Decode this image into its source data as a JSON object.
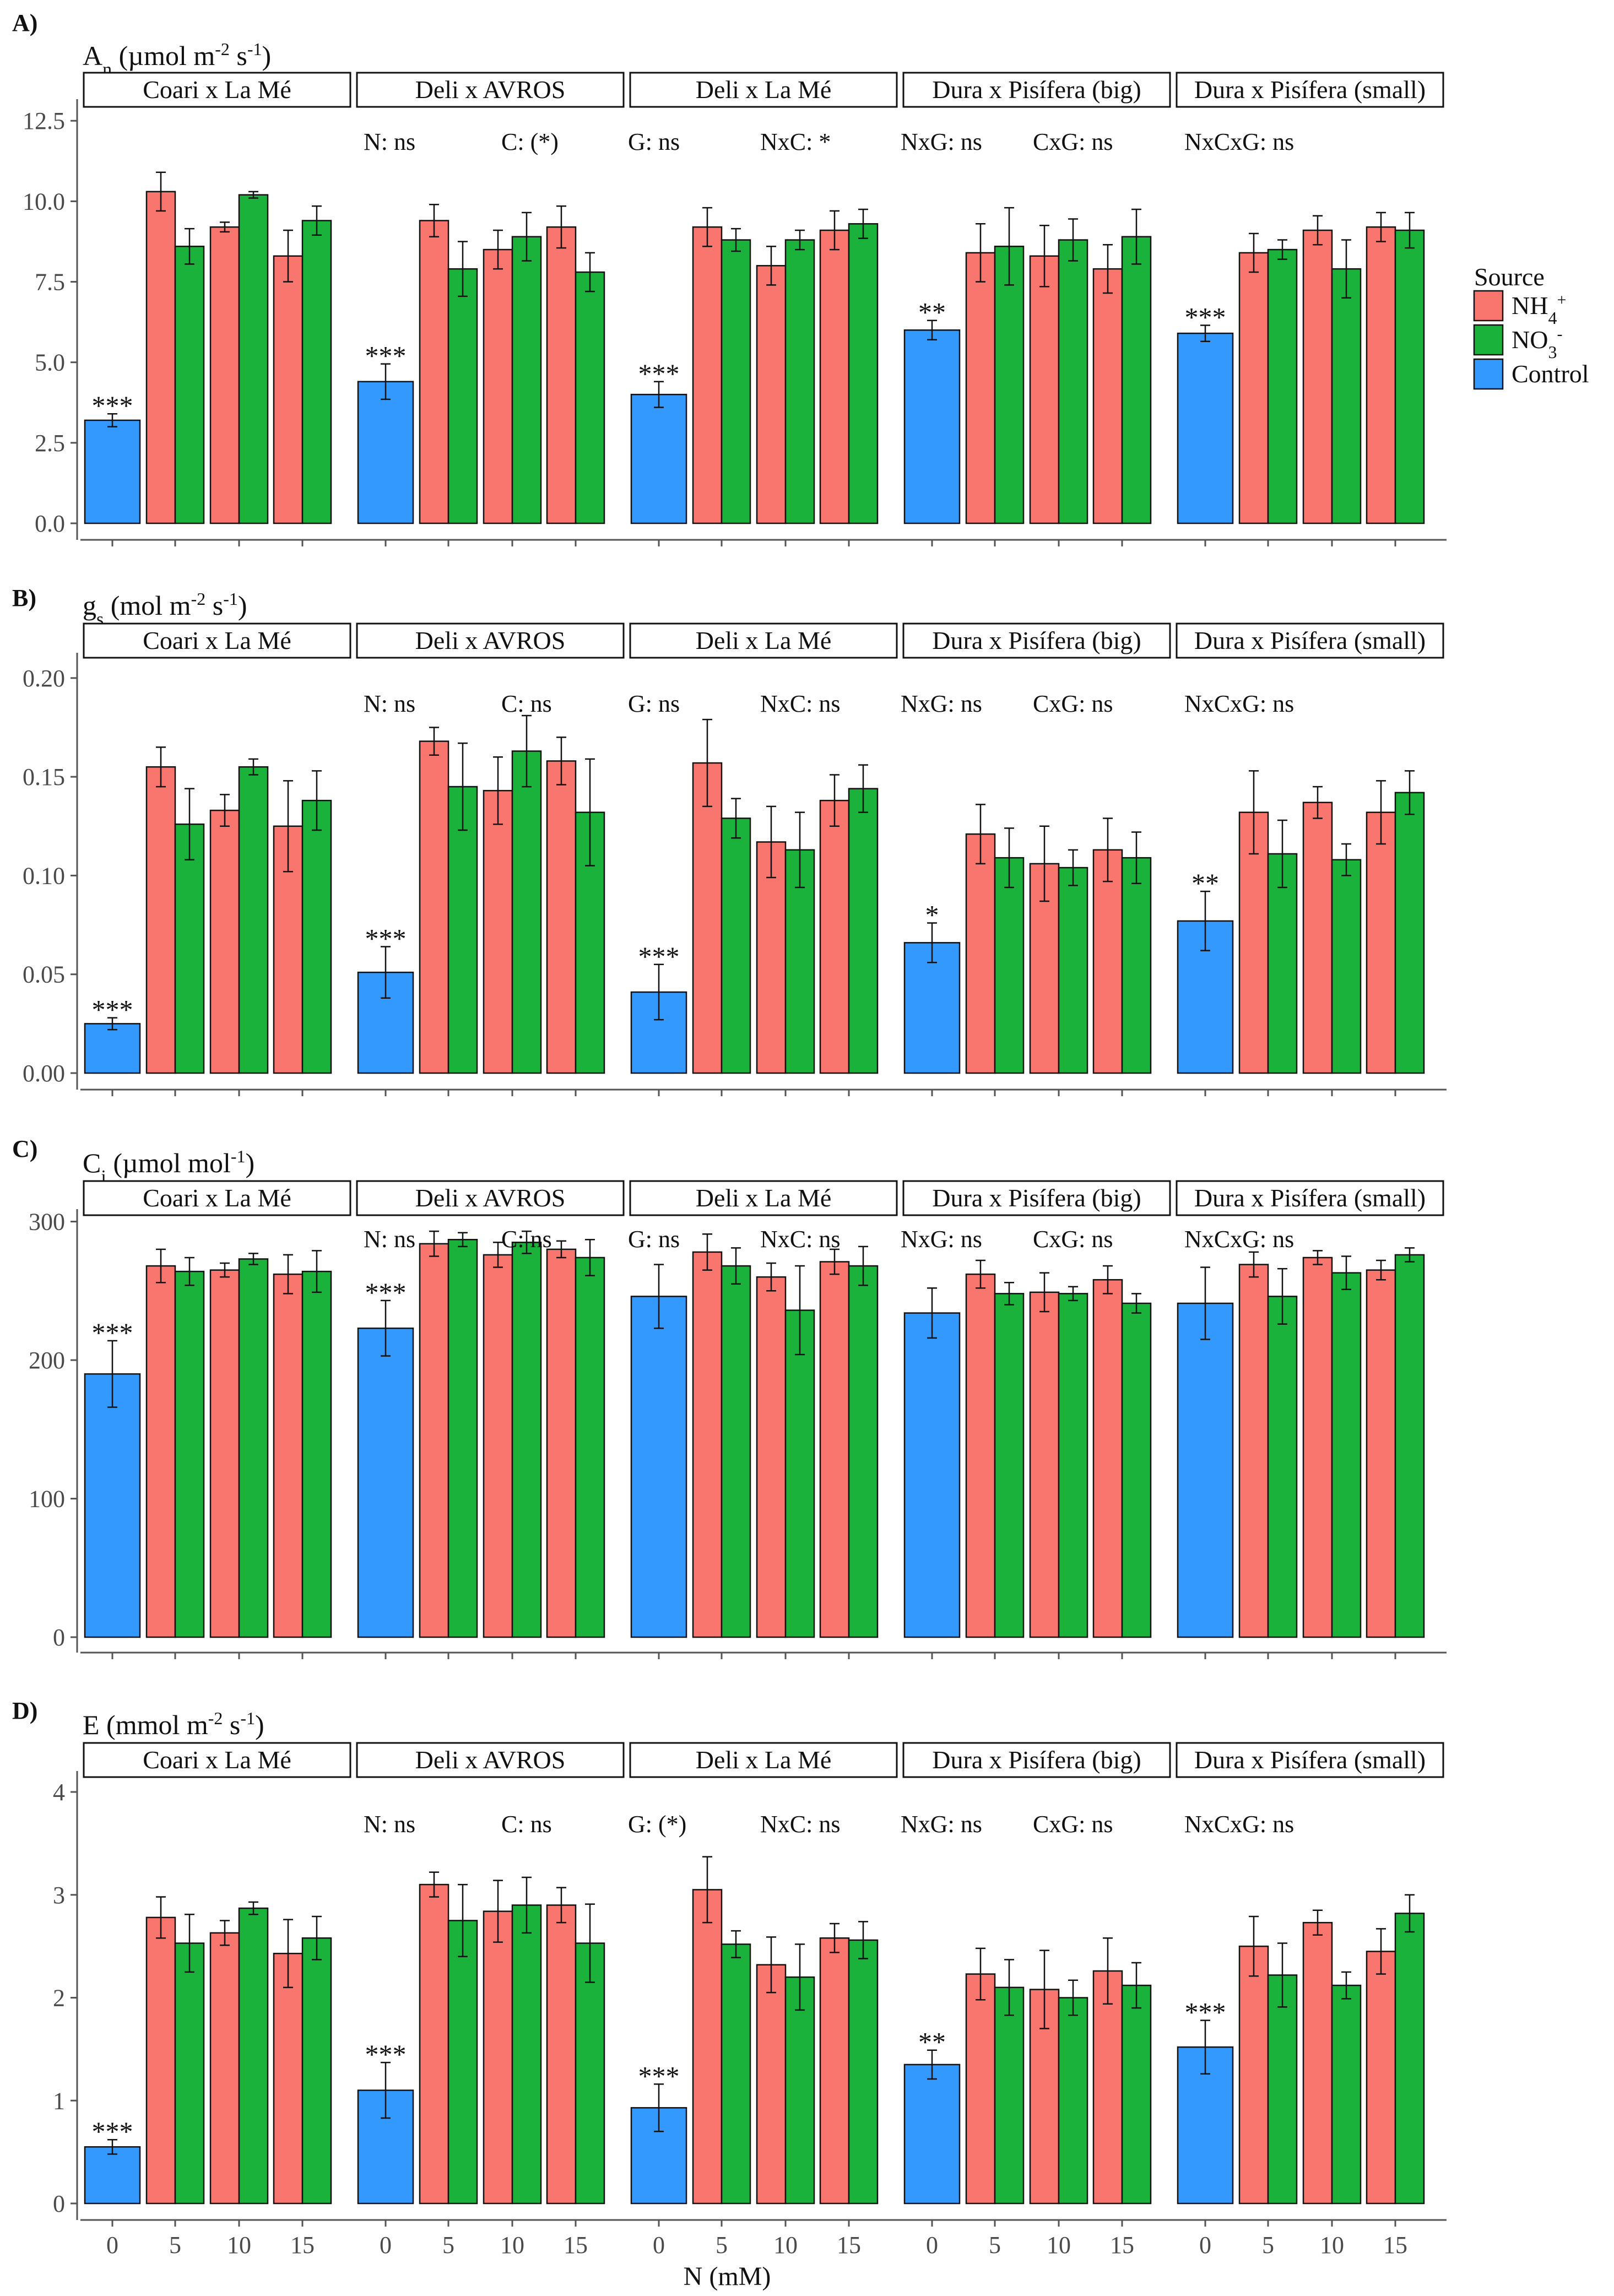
{
  "chart_data": [
    {
      "panel": "A)",
      "type": "bar",
      "ylabel": "An (µmol m-2 s-1)",
      "ylabel_parts": {
        "main": "A",
        "sub": "n",
        "unit_a": " (µmol m",
        "sup_a": "-2",
        "unit_b": " s",
        "sup_b": "-1",
        "unit_c": ")"
      },
      "ylim": [
        0,
        13.0
      ],
      "yticks": [
        "0.0",
        "2.5",
        "5.0",
        "7.5",
        "10.0",
        "12.5"
      ],
      "ytick_values": [
        0,
        2.5,
        5,
        7.5,
        10,
        12.5
      ],
      "stats": [
        "N: ns",
        "C: (*)",
        "G: ns",
        "NxC: *",
        "NxG: ns",
        "CxG: ns",
        "NxCxG: ns"
      ],
      "facets": [
        {
          "name": "Coari x La Mé",
          "control": {
            "value": 3.2,
            "se": 0.2,
            "sig": "***"
          },
          "nh4": [
            10.3,
            9.2,
            8.3
          ],
          "nh4_se": [
            0.6,
            0.15,
            0.8
          ],
          "no3": [
            8.6,
            10.2,
            9.4
          ],
          "no3_se": [
            0.55,
            0.1,
            0.45
          ]
        },
        {
          "name": "Deli x AVROS",
          "control": {
            "value": 4.4,
            "se": 0.55,
            "sig": "***"
          },
          "nh4": [
            9.4,
            8.5,
            9.2
          ],
          "nh4_se": [
            0.5,
            0.6,
            0.65
          ],
          "no3": [
            7.9,
            8.9,
            7.8
          ],
          "no3_se": [
            0.85,
            0.75,
            0.6
          ]
        },
        {
          "name": "Deli x La Mé",
          "control": {
            "value": 4.0,
            "se": 0.4,
            "sig": "***"
          },
          "nh4": [
            9.2,
            8.0,
            9.1
          ],
          "nh4_se": [
            0.6,
            0.6,
            0.6
          ],
          "no3": [
            8.8,
            8.8,
            9.3
          ],
          "no3_se": [
            0.35,
            0.3,
            0.45
          ]
        },
        {
          "name": "Dura x Pisífera (big)",
          "control": {
            "value": 6.0,
            "se": 0.3,
            "sig": "**"
          },
          "nh4": [
            8.4,
            8.3,
            7.9
          ],
          "nh4_se": [
            0.9,
            0.95,
            0.75
          ],
          "no3": [
            8.6,
            8.8,
            8.9
          ],
          "no3_se": [
            1.2,
            0.65,
            0.85
          ]
        },
        {
          "name": "Dura x Pisífera (small)",
          "control": {
            "value": 5.9,
            "se": 0.25,
            "sig": "***"
          },
          "nh4": [
            8.4,
            9.1,
            9.2
          ],
          "nh4_se": [
            0.6,
            0.45,
            0.45
          ],
          "no3": [
            8.5,
            7.9,
            9.1
          ],
          "no3_se": [
            0.3,
            0.9,
            0.55
          ]
        }
      ]
    },
    {
      "panel": "B)",
      "type": "bar",
      "ylabel": "gs (mol m-2 s-1)",
      "ylabel_parts": {
        "main": "g",
        "sub": "s",
        "unit_a": " (mol m",
        "sup_a": "-2",
        "unit_b": " s",
        "sup_b": "-1",
        "unit_c": ")"
      },
      "ylim": [
        0,
        0.21
      ],
      "yticks": [
        "0.00",
        "0.05",
        "0.10",
        "0.15",
        "0.20"
      ],
      "ytick_values": [
        0,
        0.05,
        0.1,
        0.15,
        0.2
      ],
      "stats": [
        "N: ns",
        "C: ns",
        "G: ns",
        "NxC: ns",
        "NxG: ns",
        "CxG: ns",
        "NxCxG: ns"
      ],
      "facets": [
        {
          "name": "Coari x La Mé",
          "control": {
            "value": 0.025,
            "se": 0.003,
            "sig": "***"
          },
          "nh4": [
            0.155,
            0.133,
            0.125
          ],
          "nh4_se": [
            0.01,
            0.008,
            0.023
          ],
          "no3": [
            0.126,
            0.155,
            0.138
          ],
          "no3_se": [
            0.018,
            0.004,
            0.015
          ]
        },
        {
          "name": "Deli x AVROS",
          "control": {
            "value": 0.051,
            "se": 0.013,
            "sig": "***"
          },
          "nh4": [
            0.168,
            0.143,
            0.158
          ],
          "nh4_se": [
            0.007,
            0.017,
            0.012
          ],
          "no3": [
            0.145,
            0.163,
            0.132
          ],
          "no3_se": [
            0.022,
            0.018,
            0.027
          ]
        },
        {
          "name": "Deli x La Mé",
          "control": {
            "value": 0.041,
            "se": 0.014,
            "sig": "***"
          },
          "nh4": [
            0.157,
            0.117,
            0.138
          ],
          "nh4_se": [
            0.022,
            0.018,
            0.013
          ],
          "no3": [
            0.129,
            0.113,
            0.144
          ],
          "no3_se": [
            0.01,
            0.019,
            0.012
          ]
        },
        {
          "name": "Dura x Pisífera (big)",
          "control": {
            "value": 0.066,
            "se": 0.01,
            "sig": "*"
          },
          "nh4": [
            0.121,
            0.106,
            0.113
          ],
          "nh4_se": [
            0.015,
            0.019,
            0.016
          ],
          "no3": [
            0.109,
            0.104,
            0.109
          ],
          "no3_se": [
            0.015,
            0.009,
            0.013
          ]
        },
        {
          "name": "Dura x Pisífera (small)",
          "control": {
            "value": 0.077,
            "se": 0.015,
            "sig": "**"
          },
          "nh4": [
            0.132,
            0.137,
            0.132
          ],
          "nh4_se": [
            0.021,
            0.008,
            0.016
          ],
          "no3": [
            0.111,
            0.108,
            0.142
          ],
          "no3_se": [
            0.017,
            0.008,
            0.011
          ]
        }
      ]
    },
    {
      "panel": "C)",
      "type": "bar",
      "ylabel": "Ci (µmol mol-1)",
      "ylabel_parts": {
        "main": "C",
        "sub": "i",
        "unit_a": " (µmol mol",
        "sup_a": "-1",
        "unit_b": ")",
        "sup_b": "",
        "unit_c": ""
      },
      "ylim": [
        0,
        305
      ],
      "yticks": [
        "0",
        "100",
        "200",
        "300"
      ],
      "ytick_values": [
        0,
        100,
        200,
        300
      ],
      "stats": [
        "N: ns",
        "C: ns",
        "G: ns",
        "NxC: ns",
        "NxG: ns",
        "CxG: ns",
        "NxCxG: ns"
      ],
      "facets": [
        {
          "name": "Coari x La Mé",
          "control": {
            "value": 190,
            "se": 24,
            "sig": "***"
          },
          "nh4": [
            268,
            265,
            262
          ],
          "nh4_se": [
            12,
            5,
            14
          ],
          "no3": [
            264,
            273,
            264
          ],
          "no3_se": [
            10,
            4,
            15
          ]
        },
        {
          "name": "Deli x AVROS",
          "control": {
            "value": 223,
            "se": 20,
            "sig": "***"
          },
          "nh4": [
            284,
            276,
            280
          ],
          "nh4_se": [
            9,
            9,
            6
          ],
          "no3": [
            287,
            285,
            274
          ],
          "no3_se": [
            5,
            8,
            13
          ]
        },
        {
          "name": "Deli x La Mé",
          "control": {
            "value": 246,
            "se": 23,
            "sig": ""
          },
          "nh4": [
            278,
            260,
            271
          ],
          "nh4_se": [
            13,
            10,
            9
          ],
          "no3": [
            268,
            236,
            268
          ],
          "no3_se": [
            13,
            32,
            14
          ]
        },
        {
          "name": "Dura x Pisífera (big)",
          "control": {
            "value": 234,
            "se": 18,
            "sig": ""
          },
          "nh4": [
            262,
            249,
            258
          ],
          "nh4_se": [
            10,
            14,
            10
          ],
          "no3": [
            248,
            248,
            241
          ],
          "no3_se": [
            8,
            5,
            7
          ]
        },
        {
          "name": "Dura x Pisífera (small)",
          "control": {
            "value": 241,
            "se": 26,
            "sig": ""
          },
          "nh4": [
            269,
            274,
            265
          ],
          "nh4_se": [
            9,
            5,
            7
          ],
          "no3": [
            246,
            263,
            276
          ],
          "no3_se": [
            20,
            12,
            5
          ]
        }
      ]
    },
    {
      "panel": "D)",
      "type": "bar",
      "ylabel": "E (mmol m-2 s-1)",
      "ylabel_parts": {
        "main": "E",
        "sub": "",
        "unit_a": " (mmol m",
        "sup_a": "-2",
        "unit_b": " s",
        "sup_b": "-1",
        "unit_c": ")"
      },
      "ylim": [
        0,
        4.15
      ],
      "yticks": [
        "0",
        "1",
        "2",
        "3",
        "4"
      ],
      "ytick_values": [
        0,
        1,
        2,
        3,
        4
      ],
      "stats": [
        "N: ns",
        "C: ns",
        "G: (*)",
        "NxC: ns",
        "NxG: ns",
        "CxG: ns",
        "NxCxG: ns"
      ],
      "facets": [
        {
          "name": "Coari x La Mé",
          "control": {
            "value": 0.55,
            "se": 0.07,
            "sig": "***"
          },
          "nh4": [
            2.78,
            2.63,
            2.43
          ],
          "nh4_se": [
            0.2,
            0.12,
            0.33
          ],
          "no3": [
            2.53,
            2.87,
            2.58
          ],
          "no3_se": [
            0.28,
            0.06,
            0.21
          ]
        },
        {
          "name": "Deli x AVROS",
          "control": {
            "value": 1.1,
            "se": 0.27,
            "sig": "***"
          },
          "nh4": [
            3.1,
            2.84,
            2.9
          ],
          "nh4_se": [
            0.12,
            0.3,
            0.17
          ],
          "no3": [
            2.75,
            2.9,
            2.53
          ],
          "no3_se": [
            0.35,
            0.27,
            0.38
          ]
        },
        {
          "name": "Deli x La Mé",
          "control": {
            "value": 0.93,
            "se": 0.23,
            "sig": "***"
          },
          "nh4": [
            3.05,
            2.32,
            2.58
          ],
          "nh4_se": [
            0.32,
            0.27,
            0.14
          ],
          "no3": [
            2.52,
            2.2,
            2.56
          ],
          "no3_se": [
            0.13,
            0.32,
            0.18
          ]
        },
        {
          "name": "Dura x Pisífera (big)",
          "control": {
            "value": 1.35,
            "se": 0.14,
            "sig": "**"
          },
          "nh4": [
            2.23,
            2.08,
            2.26
          ],
          "nh4_se": [
            0.25,
            0.38,
            0.32
          ],
          "no3": [
            2.1,
            2.0,
            2.12
          ],
          "no3_se": [
            0.27,
            0.17,
            0.22
          ]
        },
        {
          "name": "Dura x Pisífera (small)",
          "control": {
            "value": 1.52,
            "se": 0.26,
            "sig": "***"
          },
          "nh4": [
            2.5,
            2.73,
            2.45
          ],
          "nh4_se": [
            0.29,
            0.12,
            0.22
          ],
          "no3": [
            2.22,
            2.12,
            2.82
          ],
          "no3_se": [
            0.31,
            0.13,
            0.18
          ]
        }
      ]
    }
  ],
  "x_categories": [
    "0",
    "5",
    "10",
    "15"
  ],
  "xlabel": "N (mM)",
  "legend": {
    "title": "Source",
    "placement": "right",
    "items": [
      {
        "main": "NH",
        "sub": "4",
        "sup": "+",
        "color": "#f8766d"
      },
      {
        "main": "NO",
        "sub": "3",
        "sup": "-",
        "color": "#1ab23a"
      },
      {
        "main": "Control",
        "sub": "",
        "sup": "",
        "color": "#3399ff"
      }
    ]
  },
  "colors": {
    "nh4": "#f8766d",
    "no3": "#1ab23a",
    "control": "#3399ff"
  }
}
